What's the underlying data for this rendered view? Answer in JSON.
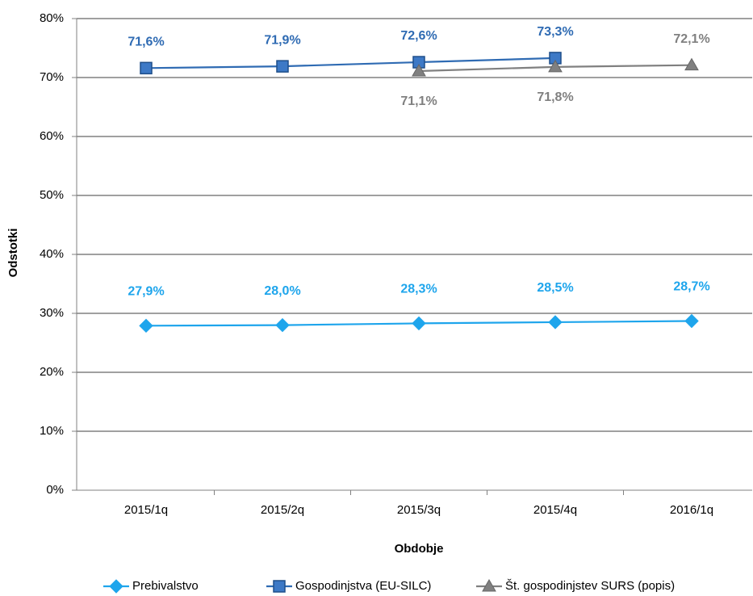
{
  "chart_data": {
    "type": "line",
    "xlabel": "Obdobje",
    "ylabel": "Odstotki",
    "categories": [
      "2015/1q",
      "2015/2q",
      "2015/3q",
      "2015/4q",
      "2016/1q"
    ],
    "series": [
      {
        "name": "Prebivalstvo",
        "color": "#1ea5ec",
        "marker": "diamond",
        "values": [
          27.9,
          28.0,
          28.3,
          28.5,
          28.7
        ],
        "value_labels": [
          "27,9%",
          "28,0%",
          "28,3%",
          "28,5%",
          "28,7%"
        ]
      },
      {
        "name": "Gospodinjstva (EU-SILC)",
        "color": "#2f6bb3",
        "marker": "square",
        "values": [
          71.6,
          71.9,
          72.6,
          73.3,
          null
        ],
        "value_labels": [
          "71,6%",
          "71,9%",
          "72,6%",
          "73,3%",
          null
        ]
      },
      {
        "name": "Št. gospodinjstev SURS (popis)",
        "color": "#808080",
        "marker": "triangle",
        "values": [
          null,
          null,
          71.1,
          71.8,
          72.1
        ],
        "value_labels": [
          null,
          null,
          "71,1%",
          "71,8%",
          "72,1%"
        ]
      }
    ],
    "ylim": [
      0,
      80
    ],
    "yticks": [
      {
        "value": 0,
        "label": "0%"
      },
      {
        "value": 10,
        "label": "10%"
      },
      {
        "value": 20,
        "label": "20%"
      },
      {
        "value": 30,
        "label": "30%"
      },
      {
        "value": 40,
        "label": "40%"
      },
      {
        "value": 50,
        "label": "50%"
      },
      {
        "value": 60,
        "label": "60%"
      },
      {
        "value": 70,
        "label": "70%"
      },
      {
        "value": 80,
        "label": "80%"
      }
    ],
    "grid": true,
    "legend": "bottom"
  }
}
